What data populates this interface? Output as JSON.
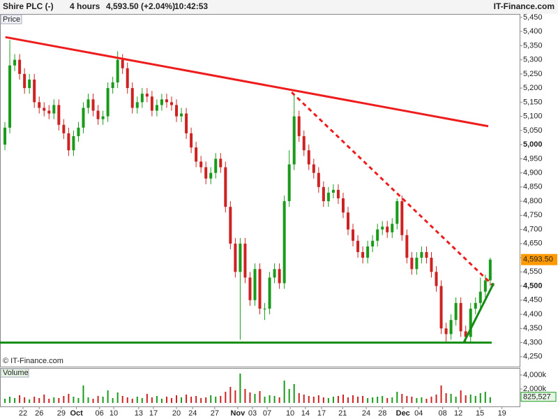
{
  "header": {
    "symbol": "Shire PLC (-)",
    "interval": "4 hours",
    "price": "4,593.50 (+2.04%)",
    "time": "10:42:53",
    "site": "IT-Finance.com"
  },
  "chart_data": [
    {
      "type": "candlestick",
      "title": "Price",
      "watermark": "© IT-Finance.com",
      "x": [
        1,
        2,
        3,
        4,
        5,
        6,
        7,
        8,
        9,
        10,
        11,
        12,
        13,
        14,
        15,
        16,
        17,
        18,
        19,
        20,
        21,
        22,
        23,
        24,
        25,
        26,
        27,
        28,
        29,
        30,
        31,
        32,
        33,
        34,
        35,
        36,
        37,
        38,
        39,
        40,
        41,
        42,
        43,
        44,
        45,
        46,
        47,
        48,
        49,
        50,
        51,
        52,
        53,
        54,
        55,
        56,
        57,
        58,
        59,
        60,
        61,
        62,
        63,
        64,
        65,
        66,
        67,
        68,
        69,
        70,
        71,
        72,
        73,
        74,
        75,
        76,
        77,
        78,
        79,
        80,
        81,
        82,
        83,
        84,
        85,
        86,
        87,
        88,
        89,
        90,
        91,
        92,
        93,
        94,
        95,
        96,
        97,
        98,
        99,
        100
      ],
      "open": [
        5000,
        5060,
        5280,
        5300,
        5250,
        5200,
        5230,
        5150,
        5130,
        5120,
        5110,
        5140,
        5070,
        5040,
        4980,
        5030,
        5060,
        5130,
        5160,
        5120,
        5090,
        5100,
        5200,
        5220,
        5300,
        5270,
        5200,
        5130,
        5150,
        5180,
        5170,
        5120,
        5140,
        5160,
        5150,
        5140,
        5100,
        5110,
        5040,
        4990,
        4940,
        4920,
        4880,
        4900,
        4950,
        4920,
        4780,
        4650,
        4550,
        4650,
        4530,
        4450,
        4560,
        4420,
        4420,
        4530,
        4560,
        4510,
        4800,
        4930,
        5100,
        5030,
        4980,
        4930,
        4900,
        4850,
        4800,
        4830,
        4840,
        4810,
        4760,
        4700,
        4660,
        4620,
        4600,
        4640,
        4660,
        4700,
        4710,
        4690,
        4720,
        4800,
        4680,
        4600,
        4560,
        4600,
        4620,
        4600,
        4550,
        4500,
        4350,
        4330,
        4380,
        4440,
        4340,
        4320,
        4420,
        4440,
        4480,
        4520
      ],
      "high": [
        5080,
        5370,
        5320,
        5320,
        5270,
        5250,
        5250,
        5170,
        5150,
        5140,
        5160,
        5160,
        5090,
        5060,
        5050,
        5080,
        5150,
        5180,
        5180,
        5140,
        5120,
        5220,
        5240,
        5330,
        5320,
        5290,
        5220,
        5170,
        5200,
        5200,
        5190,
        5160,
        5180,
        5180,
        5170,
        5160,
        5130,
        5130,
        5060,
        5010,
        4960,
        4940,
        4920,
        4970,
        4970,
        4940,
        4800,
        4670,
        4670,
        4670,
        4550,
        4580,
        4580,
        4440,
        4550,
        4580,
        4580,
        4820,
        4980,
        5180,
        5120,
        5050,
        5000,
        4950,
        4920,
        4870,
        4850,
        4860,
        4860,
        4830,
        4780,
        4720,
        4680,
        4640,
        4660,
        4680,
        4720,
        4730,
        4730,
        4740,
        4810,
        4820,
        4700,
        4620,
        4620,
        4640,
        4640,
        4620,
        4570,
        4520,
        4370,
        4400,
        4460,
        4460,
        4360,
        4440,
        4460,
        4530,
        4540,
        4600
      ],
      "low": [
        4980,
        5040,
        5260,
        5230,
        5180,
        5180,
        5130,
        5110,
        5100,
        5090,
        5090,
        5050,
        5020,
        4960,
        4960,
        5010,
        5040,
        5110,
        5100,
        5070,
        5070,
        5080,
        5180,
        5200,
        5250,
        5180,
        5110,
        5110,
        5130,
        5150,
        5100,
        5100,
        5120,
        5130,
        5120,
        5080,
        5080,
        5020,
        4970,
        4920,
        4900,
        4860,
        4860,
        4880,
        4900,
        4760,
        4630,
        4530,
        4310,
        4510,
        4430,
        4430,
        4400,
        4380,
        4400,
        4510,
        4490,
        4490,
        4780,
        4910,
        5010,
        4960,
        4910,
        4880,
        4830,
        4780,
        4780,
        4810,
        4790,
        4740,
        4680,
        4640,
        4600,
        4580,
        4580,
        4620,
        4640,
        4680,
        4670,
        4670,
        4700,
        4660,
        4580,
        4540,
        4540,
        4580,
        4580,
        4530,
        4480,
        4330,
        4300,
        4310,
        4360,
        4320,
        4300,
        4300,
        4400,
        4420,
        4460,
        4500
      ],
      "close": [
        5060,
        5280,
        5300,
        5250,
        5200,
        5230,
        5150,
        5130,
        5120,
        5110,
        5140,
        5070,
        5040,
        4980,
        5030,
        5060,
        5130,
        5160,
        5120,
        5090,
        5100,
        5200,
        5220,
        5300,
        5270,
        5200,
        5130,
        5150,
        5180,
        5170,
        5120,
        5140,
        5160,
        5150,
        5140,
        5100,
        5110,
        5040,
        4990,
        4940,
        4920,
        4880,
        4900,
        4950,
        4920,
        4780,
        4650,
        4550,
        4650,
        4530,
        4450,
        4560,
        4420,
        4420,
        4530,
        4560,
        4510,
        4800,
        4930,
        5100,
        5030,
        4980,
        4930,
        4900,
        4850,
        4800,
        4830,
        4840,
        4810,
        4760,
        4700,
        4660,
        4620,
        4600,
        4640,
        4660,
        4700,
        4710,
        4690,
        4720,
        4800,
        4680,
        4600,
        4560,
        4600,
        4620,
        4600,
        4550,
        4500,
        4350,
        4330,
        4380,
        4440,
        4340,
        4320,
        4420,
        4440,
        4480,
        4520,
        4593.5
      ],
      "up_color": "#1a9a1a",
      "down_color": "#cc2222",
      "xlim": [
        0,
        106
      ],
      "xticks": [
        {
          "value": 4.7,
          "label": "22"
        },
        {
          "value": 8,
          "label": "26"
        },
        {
          "value": 12.5,
          "label": "29"
        },
        {
          "value": 15.6,
          "label": "Oct"
        },
        {
          "value": 20.3,
          "label": "06"
        },
        {
          "value": 23.2,
          "label": "10"
        },
        {
          "value": 28.3,
          "label": "13"
        },
        {
          "value": 31.3,
          "label": "17"
        },
        {
          "value": 36,
          "label": "20"
        },
        {
          "value": 39.3,
          "label": "24"
        },
        {
          "value": 43.8,
          "label": "27"
        },
        {
          "value": 48.5,
          "label": "Nov"
        },
        {
          "value": 51.5,
          "label": "03"
        },
        {
          "value": 54.5,
          "label": "07"
        },
        {
          "value": 59.2,
          "label": "10"
        },
        {
          "value": 62.3,
          "label": "14"
        },
        {
          "value": 65.6,
          "label": "17"
        },
        {
          "value": 69.9,
          "label": "21"
        },
        {
          "value": 74.7,
          "label": "24"
        },
        {
          "value": 78,
          "label": "28"
        },
        {
          "value": 82.2,
          "label": "Dec"
        },
        {
          "value": 85.4,
          "label": "04"
        },
        {
          "value": 90.3,
          "label": "08"
        },
        {
          "value": 93.5,
          "label": "12"
        },
        {
          "value": 97.9,
          "label": "15"
        },
        {
          "value": 102.4,
          "label": "19"
        }
      ],
      "ylim": [
        4215,
        5462
      ],
      "yticks": [
        {
          "value": 4250,
          "label": "4,250"
        },
        {
          "value": 4300,
          "label": "4,300"
        },
        {
          "value": 4350,
          "label": "4,350"
        },
        {
          "value": 4400,
          "label": "4,400"
        },
        {
          "value": 4450,
          "label": "4,450"
        },
        {
          "value": 4500,
          "label": "4,500"
        },
        {
          "value": 4550,
          "label": "4,550"
        },
        {
          "value": 4600,
          "label": "4,600"
        },
        {
          "value": 4650,
          "label": "4,650"
        },
        {
          "value": 4700,
          "label": "4,700"
        },
        {
          "value": 4750,
          "label": "4,750"
        },
        {
          "value": 4800,
          "label": "4,800"
        },
        {
          "value": 4850,
          "label": "4,850"
        },
        {
          "value": 4900,
          "label": "4,900"
        },
        {
          "value": 4950,
          "label": "4,950"
        },
        {
          "value": 5000,
          "label": "5,000"
        },
        {
          "value": 5050,
          "label": "5,050"
        },
        {
          "value": 5100,
          "label": "5,100"
        },
        {
          "value": 5150,
          "label": "5,150"
        },
        {
          "value": 5200,
          "label": "5,200"
        },
        {
          "value": 5250,
          "label": "5,250"
        },
        {
          "value": 5300,
          "label": "5,300"
        },
        {
          "value": 5350,
          "label": "5,350"
        },
        {
          "value": 5400,
          "label": "5,400"
        },
        {
          "value": 5450,
          "label": "5,450"
        }
      ],
      "current_price": {
        "value": 4593.5,
        "label": "4,593.50",
        "color": "#ff9900"
      },
      "trendlines": [
        {
          "x": [
            1.1,
            99.6
          ],
          "y": [
            5380,
            5065
          ],
          "color": "#ee1c1c",
          "dashed": false
        },
        {
          "x": [
            59.5,
            100.7
          ],
          "y": [
            5185,
            4500
          ],
          "color": "#ee1c1c",
          "dashed": true
        },
        {
          "x": [
            0,
            100.3
          ],
          "y": [
            4300,
            4300
          ],
          "color": "#128c12",
          "dashed": false
        },
        {
          "x": [
            94.6,
            100.7
          ],
          "y": [
            4300,
            4510
          ],
          "color": "#128c12",
          "dashed": false
        }
      ]
    },
    {
      "type": "bar",
      "title": "Volume",
      "values": [
        600000,
        900000,
        700000,
        1100000,
        800000,
        500000,
        900000,
        700000,
        1200000,
        600000,
        800000,
        700000,
        1000000,
        1300000,
        900000,
        700000,
        2500000,
        800000,
        600000,
        1000000,
        900000,
        1800000,
        700000,
        1500000,
        1000000,
        800000,
        600000,
        900000,
        700000,
        1300000,
        800000,
        1000000,
        600000,
        900000,
        700000,
        1100000,
        800000,
        1200000,
        900000,
        1000000,
        700000,
        800000,
        1100000,
        900000,
        1000000,
        1600000,
        2300000,
        1800000,
        4200000,
        2000000,
        1500000,
        1300000,
        1700000,
        900000,
        1100000,
        1000000,
        800000,
        3200000,
        2000000,
        2700000,
        1400000,
        1200000,
        1000000,
        900000,
        1100000,
        800000,
        700000,
        900000,
        1000000,
        1200000,
        800000,
        1100000,
        900000,
        1000000,
        700000,
        800000,
        900000,
        1000000,
        700000,
        800000,
        1600000,
        1300000,
        1000000,
        900000,
        700000,
        800000,
        600000,
        900000,
        1200000,
        2500000,
        1400000,
        1300000,
        900000,
        1800000,
        1100000,
        1200000,
        1000000,
        1400000,
        1600000,
        825527
      ],
      "ylim": [
        0,
        5000000
      ],
      "yticks": [
        {
          "value": 2000000,
          "label": "2,000k"
        },
        {
          "value": 4000000,
          "label": "4,000k"
        }
      ],
      "current_value": {
        "value": 825527,
        "label": "825,527",
        "color": "#1a9a1a"
      }
    }
  ]
}
